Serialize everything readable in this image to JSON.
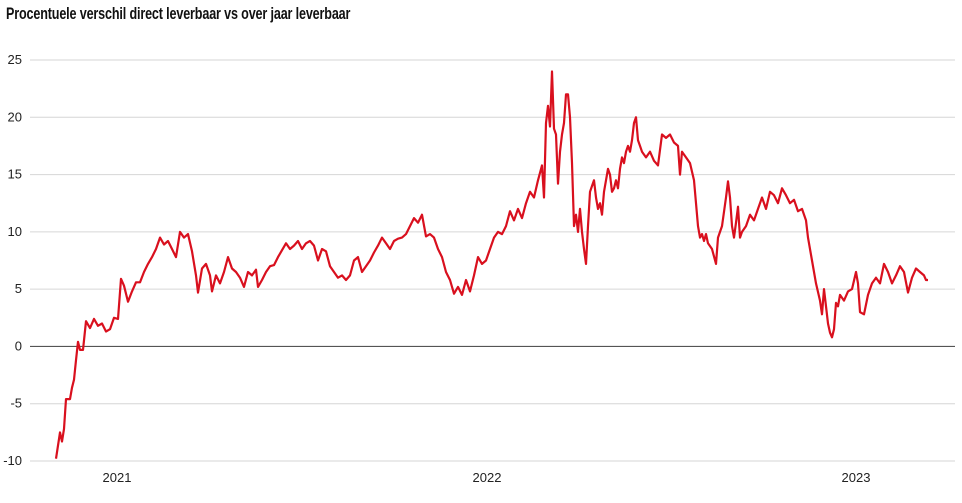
{
  "chart_data": {
    "type": "line",
    "title": "Procentuele verschil direct leverbaar vs over jaar leverbaar",
    "xlabel": "",
    "ylabel": "",
    "x_unit": "days since 2020-11-01 (approx.)",
    "xlim": [
      -26,
      899
    ],
    "ylim": [
      -10,
      25
    ],
    "yticks": [
      -10,
      -5,
      0,
      5,
      10,
      15,
      20,
      25
    ],
    "xticks": [
      {
        "label": "2021",
        "x": 61
      },
      {
        "label": "2022",
        "x": 431
      },
      {
        "label": "2023",
        "x": 800
      }
    ],
    "grid": true,
    "legend": "none",
    "line_color": "#d9101e",
    "series": [
      {
        "name": "Procentuele verschil",
        "points": [
          [
            0,
            -9.8
          ],
          [
            4,
            -7.5
          ],
          [
            6,
            -8.3
          ],
          [
            8,
            -7.2
          ],
          [
            10,
            -4.6
          ],
          [
            14,
            -4.6
          ],
          [
            16,
            -3.6
          ],
          [
            18,
            -2.9
          ],
          [
            20,
            -1.2
          ],
          [
            22,
            0.4
          ],
          [
            24,
            -0.3
          ],
          [
            27,
            -0.3
          ],
          [
            30,
            2.2
          ],
          [
            34,
            1.6
          ],
          [
            38,
            2.4
          ],
          [
            42,
            1.8
          ],
          [
            46,
            2.0
          ],
          [
            50,
            1.3
          ],
          [
            54,
            1.5
          ],
          [
            58,
            2.5
          ],
          [
            62,
            2.4
          ],
          [
            65,
            5.9
          ],
          [
            68,
            5.3
          ],
          [
            72,
            3.9
          ],
          [
            76,
            4.8
          ],
          [
            80,
            5.6
          ],
          [
            84,
            5.6
          ],
          [
            88,
            6.5
          ],
          [
            92,
            7.2
          ],
          [
            96,
            7.8
          ],
          [
            100,
            8.5
          ],
          [
            104,
            9.5
          ],
          [
            108,
            8.9
          ],
          [
            112,
            9.2
          ],
          [
            116,
            8.5
          ],
          [
            120,
            7.8
          ],
          [
            124,
            10.0
          ],
          [
            128,
            9.5
          ],
          [
            132,
            9.8
          ],
          [
            136,
            8.3
          ],
          [
            140,
            6.2
          ],
          [
            142,
            4.7
          ],
          [
            146,
            6.8
          ],
          [
            150,
            7.2
          ],
          [
            154,
            6.2
          ],
          [
            156,
            4.8
          ],
          [
            160,
            6.2
          ],
          [
            164,
            5.5
          ],
          [
            168,
            6.5
          ],
          [
            172,
            7.8
          ],
          [
            176,
            6.8
          ],
          [
            180,
            6.5
          ],
          [
            184,
            6.0
          ],
          [
            188,
            5.2
          ],
          [
            192,
            6.5
          ],
          [
            196,
            6.2
          ],
          [
            200,
            6.7
          ],
          [
            202,
            5.2
          ],
          [
            206,
            5.8
          ],
          [
            210,
            6.5
          ],
          [
            214,
            7.0
          ],
          [
            218,
            7.1
          ],
          [
            222,
            7.8
          ],
          [
            226,
            8.4
          ],
          [
            230,
            9.0
          ],
          [
            234,
            8.5
          ],
          [
            238,
            8.8
          ],
          [
            242,
            9.2
          ],
          [
            246,
            8.5
          ],
          [
            250,
            9.0
          ],
          [
            254,
            9.2
          ],
          [
            258,
            8.8
          ],
          [
            262,
            7.5
          ],
          [
            266,
            8.5
          ],
          [
            270,
            8.3
          ],
          [
            274,
            7.0
          ],
          [
            278,
            6.5
          ],
          [
            282,
            6.0
          ],
          [
            286,
            6.2
          ],
          [
            290,
            5.8
          ],
          [
            294,
            6.2
          ],
          [
            298,
            7.5
          ],
          [
            302,
            7.8
          ],
          [
            306,
            6.5
          ],
          [
            310,
            7.0
          ],
          [
            314,
            7.5
          ],
          [
            318,
            8.2
          ],
          [
            322,
            8.8
          ],
          [
            326,
            9.5
          ],
          [
            330,
            9.0
          ],
          [
            334,
            8.5
          ],
          [
            338,
            9.2
          ],
          [
            342,
            9.4
          ],
          [
            346,
            9.5
          ],
          [
            350,
            9.8
          ],
          [
            354,
            10.5
          ],
          [
            358,
            11.2
          ],
          [
            362,
            10.8
          ],
          [
            366,
            11.5
          ],
          [
            370,
            9.6
          ],
          [
            374,
            9.8
          ],
          [
            378,
            9.5
          ],
          [
            382,
            8.5
          ],
          [
            386,
            7.8
          ],
          [
            390,
            6.5
          ],
          [
            394,
            5.8
          ],
          [
            398,
            4.6
          ],
          [
            402,
            5.2
          ],
          [
            406,
            4.5
          ],
          [
            410,
            5.8
          ],
          [
            414,
            4.8
          ],
          [
            418,
            6.2
          ],
          [
            422,
            7.8
          ],
          [
            426,
            7.2
          ],
          [
            430,
            7.5
          ],
          [
            434,
            8.5
          ],
          [
            438,
            9.5
          ],
          [
            442,
            10.0
          ],
          [
            446,
            9.8
          ],
          [
            450,
            10.5
          ],
          [
            454,
            11.8
          ],
          [
            458,
            11.0
          ],
          [
            462,
            12.0
          ],
          [
            466,
            11.2
          ],
          [
            470,
            12.5
          ],
          [
            474,
            13.5
          ],
          [
            478,
            13.0
          ],
          [
            482,
            14.5
          ],
          [
            486,
            15.8
          ],
          [
            488,
            13.0
          ],
          [
            490,
            19.5
          ],
          [
            492,
            21.0
          ],
          [
            494,
            19.2
          ],
          [
            496,
            24.0
          ],
          [
            498,
            19.0
          ],
          [
            500,
            18.5
          ],
          [
            502,
            14.2
          ],
          [
            504,
            17.0
          ],
          [
            506,
            18.5
          ],
          [
            508,
            19.5
          ],
          [
            510,
            22.0
          ],
          [
            512,
            22.0
          ],
          [
            514,
            20.0
          ],
          [
            516,
            16.0
          ],
          [
            518,
            10.5
          ],
          [
            520,
            11.5
          ],
          [
            522,
            10.0
          ],
          [
            524,
            12.0
          ],
          [
            526,
            10.0
          ],
          [
            528,
            8.5
          ],
          [
            530,
            7.2
          ],
          [
            532,
            10.5
          ],
          [
            534,
            13.5
          ],
          [
            536,
            14.0
          ],
          [
            538,
            14.5
          ],
          [
            540,
            13.0
          ],
          [
            542,
            12.0
          ],
          [
            544,
            12.5
          ],
          [
            546,
            11.5
          ],
          [
            548,
            13.5
          ],
          [
            550,
            14.5
          ],
          [
            552,
            15.5
          ],
          [
            554,
            15.0
          ],
          [
            556,
            13.5
          ],
          [
            558,
            13.8
          ],
          [
            560,
            14.5
          ],
          [
            562,
            13.8
          ],
          [
            564,
            15.5
          ],
          [
            566,
            16.5
          ],
          [
            568,
            16.0
          ],
          [
            570,
            17.0
          ],
          [
            572,
            17.5
          ],
          [
            574,
            17.0
          ],
          [
            576,
            18.0
          ],
          [
            578,
            19.5
          ],
          [
            580,
            20.0
          ],
          [
            582,
            18.0
          ],
          [
            584,
            17.5
          ],
          [
            586,
            17.0
          ],
          [
            590,
            16.5
          ],
          [
            594,
            17.0
          ],
          [
            598,
            16.2
          ],
          [
            602,
            15.8
          ],
          [
            606,
            18.5
          ],
          [
            610,
            18.2
          ],
          [
            614,
            18.5
          ],
          [
            618,
            17.8
          ],
          [
            622,
            17.5
          ],
          [
            624,
            15.0
          ],
          [
            626,
            17.0
          ],
          [
            630,
            16.5
          ],
          [
            634,
            16.0
          ],
          [
            638,
            14.5
          ],
          [
            640,
            12.5
          ],
          [
            642,
            10.5
          ],
          [
            644,
            9.5
          ],
          [
            646,
            9.8
          ],
          [
            648,
            9.2
          ],
          [
            650,
            9.8
          ],
          [
            652,
            9.0
          ],
          [
            656,
            8.5
          ],
          [
            660,
            7.2
          ],
          [
            662,
            9.5
          ],
          [
            664,
            10.0
          ],
          [
            666,
            10.5
          ],
          [
            670,
            13.0
          ],
          [
            672,
            14.4
          ],
          [
            674,
            13.0
          ],
          [
            676,
            10.5
          ],
          [
            678,
            9.5
          ],
          [
            680,
            10.8
          ],
          [
            682,
            12.2
          ],
          [
            684,
            9.5
          ],
          [
            686,
            10.0
          ],
          [
            690,
            10.5
          ],
          [
            694,
            11.5
          ],
          [
            698,
            11.0
          ],
          [
            702,
            12.0
          ],
          [
            706,
            13.0
          ],
          [
            710,
            12.0
          ],
          [
            714,
            13.5
          ],
          [
            718,
            13.2
          ],
          [
            722,
            12.5
          ],
          [
            726,
            13.8
          ],
          [
            730,
            13.2
          ],
          [
            734,
            12.5
          ],
          [
            738,
            12.8
          ],
          [
            742,
            11.8
          ],
          [
            746,
            12.0
          ],
          [
            750,
            11.0
          ],
          [
            752,
            9.5
          ],
          [
            756,
            7.5
          ],
          [
            760,
            5.5
          ],
          [
            764,
            4.0
          ],
          [
            766,
            2.8
          ],
          [
            768,
            5.0
          ],
          [
            770,
            3.5
          ],
          [
            772,
            2.0
          ],
          [
            774,
            1.2
          ],
          [
            776,
            0.8
          ],
          [
            778,
            1.5
          ],
          [
            780,
            3.8
          ],
          [
            782,
            3.5
          ],
          [
            784,
            4.5
          ],
          [
            788,
            4.0
          ],
          [
            792,
            4.8
          ],
          [
            796,
            5.0
          ],
          [
            800,
            6.5
          ],
          [
            802,
            5.5
          ],
          [
            804,
            3.0
          ],
          [
            808,
            2.8
          ],
          [
            812,
            4.5
          ],
          [
            816,
            5.5
          ],
          [
            820,
            6.0
          ],
          [
            824,
            5.5
          ],
          [
            828,
            7.2
          ],
          [
            832,
            6.5
          ],
          [
            836,
            5.5
          ],
          [
            840,
            6.2
          ],
          [
            844,
            7.0
          ],
          [
            848,
            6.5
          ],
          [
            852,
            4.7
          ],
          [
            856,
            6.0
          ],
          [
            860,
            6.8
          ],
          [
            864,
            6.5
          ],
          [
            868,
            6.2
          ],
          [
            870,
            5.8
          ],
          [
            872,
            5.8
          ]
        ]
      }
    ]
  }
}
